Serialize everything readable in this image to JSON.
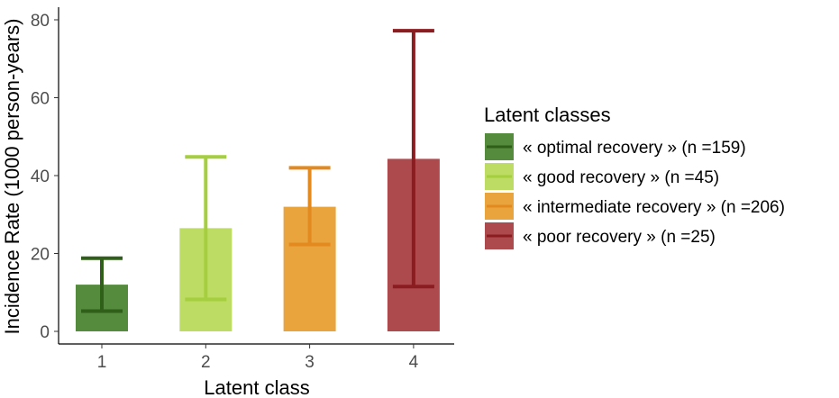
{
  "chart_data": {
    "type": "bar",
    "title": "",
    "xlabel": "Latent class",
    "ylabel": "Incidence Rate (1000 person-years)",
    "categories": [
      "1",
      "2",
      "3",
      "4"
    ],
    "values": [
      12,
      26.5,
      32,
      44.3
    ],
    "error_low": [
      5.2,
      8.2,
      22.3,
      11.5
    ],
    "error_high": [
      18.8,
      44.8,
      42.0,
      77.2
    ],
    "ylim": [
      0,
      80
    ],
    "yticks": [
      "0",
      "20",
      "40",
      "60",
      "80"
    ],
    "grid": false,
    "legend": {
      "title": "Latent classes",
      "position": "right",
      "entries": [
        "« optimal recovery » (n =159)",
        "« good recovery » (n =45)",
        "« intermediate recovery » (n =206)",
        "« poor recovery » (n =25)"
      ]
    },
    "colors": {
      "bar_fill": [
        "#548b3c",
        "#bcdc63",
        "#e9a43d",
        "#ad4a4e"
      ],
      "error_bar": [
        "#2f5f19",
        "#a5cf3e",
        "#e28a20",
        "#8b1c20"
      ]
    }
  }
}
